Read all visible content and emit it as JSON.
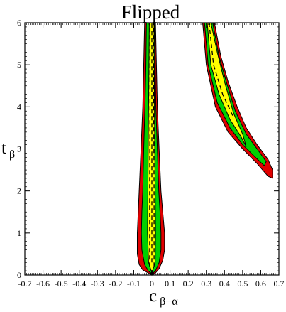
{
  "chart_data": {
    "type": "area",
    "title": "Flipped",
    "xlabel": {
      "main": "c",
      "sub": "β−α"
    },
    "ylabel": {
      "main": "t",
      "sub": "β"
    },
    "xlim": [
      -0.7,
      0.7
    ],
    "ylim": [
      0,
      6
    ],
    "x_ticks": [
      "-0.7",
      "-0.6",
      "-0.5",
      "-0.4",
      "-0.3",
      "-0.2",
      "-0.1",
      "0",
      "0.1",
      "0.2",
      "0.3",
      "0.4",
      "0.5",
      "0.6",
      "0.7"
    ],
    "y_ticks": [
      "0",
      "1",
      "2",
      "3",
      "4",
      "5",
      "6"
    ],
    "grid": false,
    "colors": {
      "outer": "#e00000",
      "middle": "#00d000",
      "inner": "#ffff00",
      "outline": "#000000"
    },
    "regions": [
      {
        "branch": "central",
        "band": "outer",
        "polygon": [
          [
            0.0,
            0.0
          ],
          [
            -0.02,
            0.05
          ],
          [
            -0.05,
            0.12
          ],
          [
            -0.07,
            0.25
          ],
          [
            -0.08,
            0.5
          ],
          [
            -0.08,
            1.0
          ],
          [
            -0.075,
            1.5
          ],
          [
            -0.07,
            2.0
          ],
          [
            -0.06,
            3.0
          ],
          [
            -0.05,
            4.0
          ],
          [
            -0.045,
            5.0
          ],
          [
            -0.04,
            6.0
          ],
          [
            0.02,
            6.0
          ],
          [
            0.03,
            4.0
          ],
          [
            0.04,
            3.0
          ],
          [
            0.05,
            2.0
          ],
          [
            0.06,
            1.5
          ],
          [
            0.07,
            1.0
          ],
          [
            0.07,
            0.6
          ],
          [
            0.06,
            0.35
          ],
          [
            0.04,
            0.15
          ],
          [
            0.02,
            0.05
          ]
        ]
      },
      {
        "branch": "central",
        "band": "middle",
        "polygon": [
          [
            0.0,
            0.02
          ],
          [
            -0.02,
            0.1
          ],
          [
            -0.04,
            0.25
          ],
          [
            -0.055,
            0.6
          ],
          [
            -0.058,
            1.0
          ],
          [
            -0.055,
            1.5
          ],
          [
            -0.05,
            2.0
          ],
          [
            -0.045,
            3.0
          ],
          [
            -0.038,
            4.0
          ],
          [
            -0.033,
            5.0
          ],
          [
            -0.03,
            6.0
          ],
          [
            0.015,
            6.0
          ],
          [
            0.022,
            4.0
          ],
          [
            0.03,
            3.0
          ],
          [
            0.038,
            2.0
          ],
          [
            0.045,
            1.5
          ],
          [
            0.05,
            1.0
          ],
          [
            0.05,
            0.6
          ],
          [
            0.04,
            0.3
          ],
          [
            0.02,
            0.1
          ]
        ]
      },
      {
        "branch": "central",
        "band": "inner",
        "polygon": [
          [
            0.0,
            0.05
          ],
          [
            -0.018,
            0.3
          ],
          [
            -0.024,
            1.0
          ],
          [
            -0.022,
            2.0
          ],
          [
            -0.02,
            3.0
          ],
          [
            -0.018,
            4.0
          ],
          [
            -0.016,
            5.0
          ],
          [
            -0.014,
            6.0
          ],
          [
            0.012,
            6.0
          ],
          [
            0.014,
            4.0
          ],
          [
            0.016,
            3.0
          ],
          [
            0.018,
            2.0
          ],
          [
            0.02,
            1.0
          ],
          [
            0.018,
            0.3
          ]
        ]
      },
      {
        "branch": "right",
        "band": "outer",
        "polygon": [
          [
            0.28,
            6.0
          ],
          [
            0.3,
            5.0
          ],
          [
            0.35,
            4.0
          ],
          [
            0.42,
            3.4
          ],
          [
            0.5,
            3.0
          ],
          [
            0.58,
            2.65
          ],
          [
            0.64,
            2.35
          ],
          [
            0.665,
            2.3
          ],
          [
            0.665,
            2.5
          ],
          [
            0.64,
            2.75
          ],
          [
            0.58,
            3.1
          ],
          [
            0.52,
            3.5
          ],
          [
            0.47,
            4.0
          ],
          [
            0.42,
            4.6
          ],
          [
            0.38,
            5.2
          ],
          [
            0.345,
            6.0
          ]
        ]
      },
      {
        "branch": "right",
        "band": "middle",
        "polygon": [
          [
            0.29,
            6.0
          ],
          [
            0.31,
            5.0
          ],
          [
            0.36,
            4.1
          ],
          [
            0.43,
            3.5
          ],
          [
            0.5,
            3.1
          ],
          [
            0.57,
            2.8
          ],
          [
            0.62,
            2.6
          ],
          [
            0.63,
            2.7
          ],
          [
            0.58,
            3.0
          ],
          [
            0.52,
            3.35
          ],
          [
            0.46,
            3.9
          ],
          [
            0.41,
            4.6
          ],
          [
            0.37,
            5.2
          ],
          [
            0.335,
            6.0
          ]
        ]
      },
      {
        "branch": "right",
        "band": "inner",
        "polygon": [
          [
            0.305,
            6.0
          ],
          [
            0.325,
            5.0
          ],
          [
            0.37,
            4.3
          ],
          [
            0.43,
            3.7
          ],
          [
            0.49,
            3.3
          ],
          [
            0.52,
            3.05
          ],
          [
            0.5,
            3.35
          ],
          [
            0.45,
            3.85
          ],
          [
            0.4,
            4.6
          ],
          [
            0.36,
            5.3
          ],
          [
            0.325,
            6.0
          ]
        ]
      }
    ],
    "dashed_lines": [
      {
        "branch": "central",
        "points": [
          [
            -0.012,
            0.2
          ],
          [
            -0.012,
            2.0
          ],
          [
            -0.01,
            4.0
          ],
          [
            -0.01,
            6.0
          ]
        ]
      },
      {
        "branch": "central",
        "points": [
          [
            0.012,
            0.2
          ],
          [
            0.012,
            2.0
          ],
          [
            0.01,
            4.0
          ],
          [
            0.01,
            6.0
          ]
        ]
      },
      {
        "branch": "central",
        "points": [
          [
            0.0,
            0.3
          ],
          [
            0.0,
            6.0
          ]
        ]
      },
      {
        "branch": "right",
        "points": [
          [
            0.315,
            6.0
          ],
          [
            0.34,
            5.0
          ],
          [
            0.39,
            4.3
          ],
          [
            0.45,
            3.75
          ]
        ]
      }
    ]
  }
}
